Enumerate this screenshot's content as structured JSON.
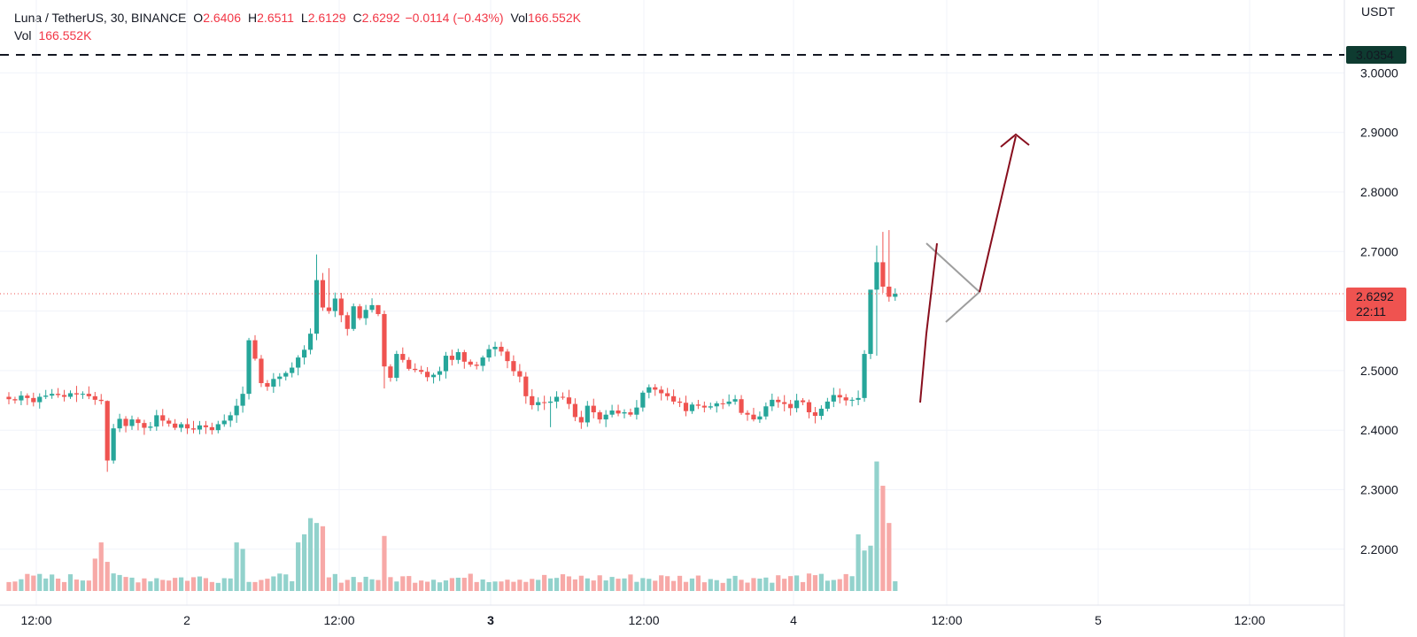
{
  "header": {
    "symbol": "Luna / TetherUS, 30, BINANCE",
    "o_label": "O",
    "o_value": "2.6406",
    "h_label": "H",
    "h_value": "2.6511",
    "l_label": "L",
    "l_value": "2.6129",
    "c_label": "C",
    "c_value": "2.6292",
    "change": "−0.0114 (−0.43%)",
    "vol_label": "Vol",
    "vol_value": "166.552K",
    "vol_row_label": "Vol",
    "vol_row_value": "166.552K"
  },
  "price_axis": {
    "currency": "USDT",
    "ticks": [
      "3.0000",
      "2.9000",
      "2.8000",
      "2.7000",
      "2.5000",
      "2.4000",
      "2.3000",
      "2.2000"
    ],
    "dashed_level": "3.0354",
    "current_price": "2.6292",
    "countdown": "22:11"
  },
  "time_axis": {
    "labels": [
      {
        "text": "12:00",
        "bold": false
      },
      {
        "text": "2",
        "bold": false
      },
      {
        "text": "12:00",
        "bold": false
      },
      {
        "text": "3",
        "bold": true
      },
      {
        "text": "12:00",
        "bold": false
      },
      {
        "text": "4",
        "bold": false
      },
      {
        "text": "12:00",
        "bold": false
      },
      {
        "text": "5",
        "bold": false
      },
      {
        "text": "12:00",
        "bold": false
      }
    ]
  },
  "colors": {
    "up": "#26a69a",
    "down": "#ef5350",
    "up_vol": "#92d2cc",
    "down_vol": "#f7a9a7",
    "arrow": "#880e1d",
    "triangle": "#9e9e9e",
    "dashed": "#131722",
    "price_tag": "#ef5350",
    "level_tag": "#0e3b30"
  },
  "chart_data": {
    "type": "candlestick",
    "interval": "30",
    "x": [
      "Jan 1 12:00 → Jan 4 ~15:00, 30-minute bars (145 bars)"
    ],
    "ylim": [
      2.14,
      3.04
    ],
    "reference_level": 3.0354,
    "last_price": 2.6292,
    "close": [
      2.452,
      2.45,
      2.458,
      2.454,
      2.447,
      2.456,
      2.458,
      2.461,
      2.459,
      2.456,
      2.462,
      2.46,
      2.461,
      2.457,
      2.451,
      2.449,
      2.349,
      2.403,
      2.419,
      2.407,
      2.418,
      2.412,
      2.404,
      2.406,
      2.425,
      2.416,
      2.411,
      2.404,
      2.41,
      2.403,
      2.401,
      2.408,
      2.405,
      2.4,
      2.41,
      2.416,
      2.425,
      2.441,
      2.461,
      2.551,
      2.52,
      2.479,
      2.473,
      2.486,
      2.49,
      2.496,
      2.505,
      2.522,
      2.535,
      2.562,
      2.652,
      2.606,
      2.6,
      2.621,
      2.593,
      2.57,
      2.608,
      2.588,
      2.602,
      2.61,
      2.595,
      2.507,
      2.488,
      2.528,
      2.518,
      2.503,
      2.501,
      2.498,
      2.489,
      2.493,
      2.499,
      2.525,
      2.518,
      2.531,
      2.515,
      2.51,
      2.508,
      2.522,
      2.536,
      2.54,
      2.532,
      2.516,
      2.499,
      2.49,
      2.457,
      2.442,
      2.447,
      2.446,
      2.448,
      2.456,
      2.455,
      2.444,
      2.422,
      2.413,
      2.441,
      2.43,
      2.418,
      2.426,
      2.433,
      2.428,
      2.43,
      2.426,
      2.438,
      2.463,
      2.472,
      2.468,
      2.462,
      2.457,
      2.448,
      2.446,
      2.432,
      2.443,
      2.441,
      2.438,
      2.44,
      2.445,
      2.444,
      2.448,
      2.452,
      2.429,
      2.426,
      2.418,
      2.423,
      2.44,
      2.451,
      2.447,
      2.444,
      2.437,
      2.45,
      2.447,
      2.43,
      2.424,
      2.436,
      2.448,
      2.459,
      2.455,
      2.45,
      2.451,
      2.454,
      2.528,
      2.636,
      2.682,
      2.641,
      2.624,
      2.629
    ],
    "volume_relative_max": 1.0
  }
}
